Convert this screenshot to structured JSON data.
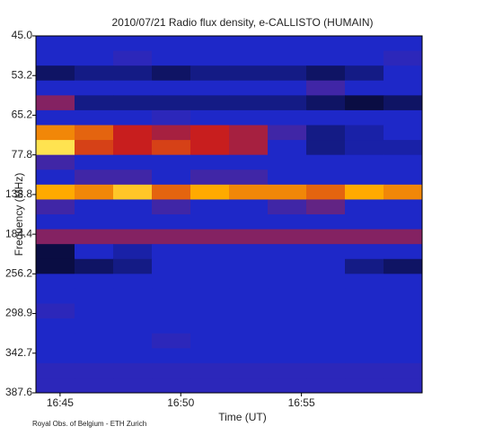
{
  "chart_data": {
    "type": "spectrogram",
    "title": "2010/07/21  Radio flux density, e-CALLISTO (HUMAIN)",
    "x_label": "Time (UT)",
    "y_label": "Frequency (MHz)",
    "footer": "Royal Obs. of Belgium - ETH Zurich",
    "xlim": [
      "16:44",
      "17:00"
    ],
    "xticks": [
      "16:45",
      "16:50",
      "16:55"
    ],
    "yticks": [
      {
        "value": 45,
        "label": "45.0"
      },
      53.2,
      65.2,
      77.8,
      138.8,
      184.4,
      256.2,
      298.9,
      342.7,
      387.6
    ],
    "intensity": [
      [
        0.3,
        0.3,
        0.3,
        0.3,
        0.3,
        0.3,
        0.3,
        0.3,
        0.3,
        0.3
      ],
      [
        0.3,
        0.3,
        0.32,
        0.3,
        0.3,
        0.3,
        0.3,
        0.3,
        0.3,
        0.32
      ],
      [
        0.15,
        0.2,
        0.2,
        0.15,
        0.2,
        0.2,
        0.2,
        0.15,
        0.2,
        0.3
      ],
      [
        0.3,
        0.3,
        0.3,
        0.3,
        0.3,
        0.3,
        0.3,
        0.35,
        0.3,
        0.3
      ],
      [
        0.45,
        0.2,
        0.2,
        0.2,
        0.2,
        0.2,
        0.2,
        0.15,
        0.1,
        0.15
      ],
      [
        0.3,
        0.3,
        0.3,
        0.32,
        0.3,
        0.3,
        0.3,
        0.3,
        0.3,
        0.3
      ],
      [
        0.7,
        0.65,
        0.55,
        0.5,
        0.55,
        0.5,
        0.35,
        0.2,
        0.25,
        0.3
      ],
      [
        0.85,
        0.6,
        0.55,
        0.6,
        0.55,
        0.5,
        0.3,
        0.2,
        0.25,
        0.25
      ],
      [
        0.35,
        0.3,
        0.3,
        0.3,
        0.3,
        0.3,
        0.3,
        0.3,
        0.3,
        0.3
      ],
      [
        0.3,
        0.35,
        0.35,
        0.3,
        0.35,
        0.35,
        0.3,
        0.3,
        0.3,
        0.3
      ],
      [
        0.75,
        0.7,
        0.8,
        0.65,
        0.75,
        0.7,
        0.7,
        0.65,
        0.75,
        0.7
      ],
      [
        0.35,
        0.3,
        0.3,
        0.35,
        0.3,
        0.3,
        0.35,
        0.4,
        0.3,
        0.3
      ],
      [
        0.3,
        0.3,
        0.3,
        0.3,
        0.3,
        0.3,
        0.3,
        0.3,
        0.3,
        0.3
      ],
      [
        0.45,
        0.45,
        0.45,
        0.45,
        0.45,
        0.45,
        0.45,
        0.45,
        0.45,
        0.45
      ],
      [
        0.1,
        0.3,
        0.25,
        0.3,
        0.3,
        0.3,
        0.3,
        0.3,
        0.3,
        0.3
      ],
      [
        0.1,
        0.15,
        0.2,
        0.3,
        0.3,
        0.3,
        0.3,
        0.3,
        0.2,
        0.15
      ],
      [
        0.3,
        0.3,
        0.3,
        0.3,
        0.3,
        0.3,
        0.3,
        0.3,
        0.3,
        0.3
      ],
      [
        0.3,
        0.3,
        0.3,
        0.3,
        0.3,
        0.3,
        0.3,
        0.3,
        0.3,
        0.3
      ],
      [
        0.32,
        0.3,
        0.3,
        0.3,
        0.3,
        0.3,
        0.3,
        0.3,
        0.3,
        0.3
      ],
      [
        0.3,
        0.3,
        0.3,
        0.3,
        0.3,
        0.3,
        0.3,
        0.3,
        0.3,
        0.3
      ],
      [
        0.3,
        0.3,
        0.3,
        0.32,
        0.3,
        0.3,
        0.3,
        0.3,
        0.3,
        0.3
      ],
      [
        0.3,
        0.3,
        0.3,
        0.3,
        0.3,
        0.3,
        0.3,
        0.3,
        0.3,
        0.3
      ],
      [
        0.32,
        0.32,
        0.32,
        0.32,
        0.32,
        0.32,
        0.32,
        0.32,
        0.32,
        0.32
      ],
      [
        0.32,
        0.32,
        0.32,
        0.32,
        0.32,
        0.32,
        0.32,
        0.32,
        0.32,
        0.32
      ]
    ]
  }
}
